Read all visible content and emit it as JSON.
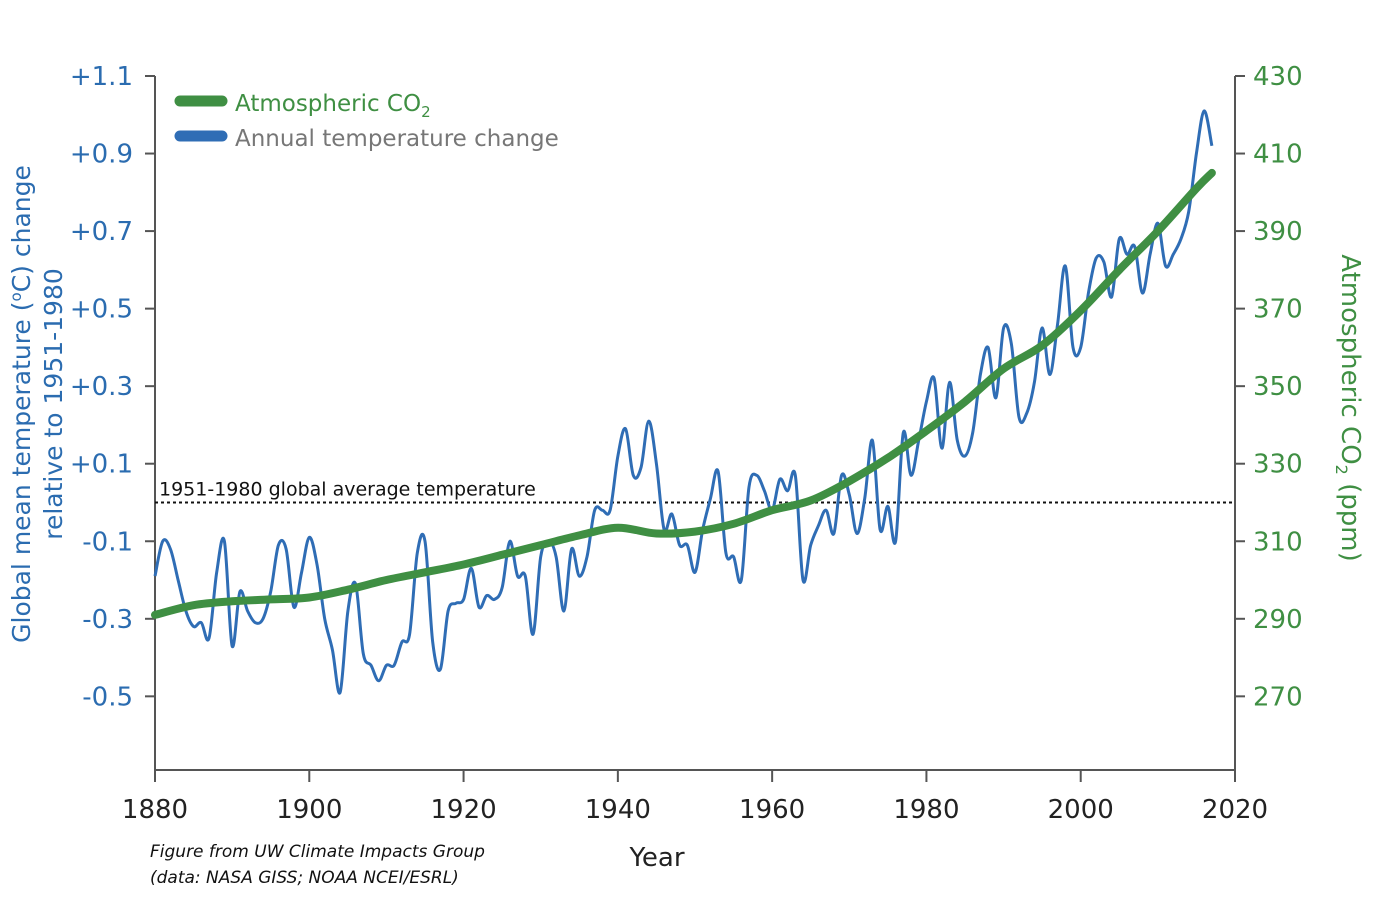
{
  "chart_data": {
    "type": "line",
    "title": "",
    "xlabel": "Year",
    "ylabel_left": {
      "main": "Global  mean temperature (",
      "sup": "o",
      "rest": "C) change",
      "line2": "relative to 1951-1980"
    },
    "ylabel_right": {
      "main": "Atmospheric CO",
      "sub": "2",
      "rest": " (ppm)"
    },
    "xlim": [
      1880,
      2020
    ],
    "ylim_left": [
      -0.69,
      1.1
    ],
    "ylim_right": [
      251,
      430
    ],
    "x_ticks": [
      "1880",
      "1900",
      "1920",
      "1940",
      "1960",
      "1980",
      "2000",
      "2020"
    ],
    "x_tick_values": [
      1880,
      1900,
      1920,
      1940,
      1960,
      1980,
      2000,
      2020
    ],
    "y_left_ticks": [
      "+1.1",
      "+0.9",
      "+0.7",
      "+0.5",
      "+0.3",
      "+0.1",
      "-0.1",
      "-0.3",
      "-0.5"
    ],
    "y_left_tick_values": [
      1.1,
      0.9,
      0.7,
      0.5,
      0.3,
      0.1,
      -0.1,
      -0.3,
      -0.5
    ],
    "y_right_ticks": [
      "430",
      "410",
      "390",
      "370",
      "350",
      "330",
      "310",
      "290",
      "270"
    ],
    "y_right_tick_values": [
      430,
      410,
      390,
      370,
      350,
      330,
      310,
      290,
      270
    ],
    "legend": {
      "position": "top-left",
      "co2": {
        "main": "Atmospheric CO",
        "sub": "2"
      },
      "temp": "Annual temperature change"
    },
    "reference_line": {
      "value": 0.0,
      "label": "1951-1980 global average temperature"
    },
    "colors": {
      "temperature": "#2f6db5",
      "co2": "#3f8f43",
      "axis": "#555555"
    },
    "series": [
      {
        "key": "temperature",
        "axis": "left",
        "x": [
          1880,
          1881,
          1882,
          1883,
          1884,
          1885,
          1886,
          1887,
          1888,
          1889,
          1890,
          1891,
          1892,
          1893,
          1894,
          1895,
          1896,
          1897,
          1898,
          1899,
          1900,
          1901,
          1902,
          1903,
          1904,
          1905,
          1906,
          1907,
          1908,
          1909,
          1910,
          1911,
          1912,
          1913,
          1914,
          1915,
          1916,
          1917,
          1918,
          1919,
          1920,
          1921,
          1922,
          1923,
          1924,
          1925,
          1926,
          1927,
          1928,
          1929,
          1930,
          1931,
          1932,
          1933,
          1934,
          1935,
          1936,
          1937,
          1938,
          1939,
          1940,
          1941,
          1942,
          1943,
          1944,
          1945,
          1946,
          1947,
          1948,
          1949,
          1950,
          1951,
          1952,
          1953,
          1954,
          1955,
          1956,
          1957,
          1958,
          1959,
          1960,
          1961,
          1962,
          1963,
          1964,
          1965,
          1966,
          1967,
          1968,
          1969,
          1970,
          1971,
          1972,
          1973,
          1974,
          1975,
          1976,
          1977,
          1978,
          1979,
          1980,
          1981,
          1982,
          1983,
          1984,
          1985,
          1986,
          1987,
          1988,
          1989,
          1990,
          1991,
          1992,
          1993,
          1994,
          1995,
          1996,
          1997,
          1998,
          1999,
          2000,
          2001,
          2002,
          2003,
          2004,
          2005,
          2006,
          2007,
          2008,
          2009,
          2010,
          2011,
          2012,
          2013,
          2014,
          2015,
          2016,
          2017
        ],
        "values": [
          -0.19,
          -0.1,
          -0.12,
          -0.2,
          -0.28,
          -0.32,
          -0.31,
          -0.35,
          -0.18,
          -0.1,
          -0.37,
          -0.23,
          -0.28,
          -0.31,
          -0.3,
          -0.23,
          -0.11,
          -0.12,
          -0.27,
          -0.18,
          -0.09,
          -0.16,
          -0.3,
          -0.38,
          -0.49,
          -0.28,
          -0.21,
          -0.39,
          -0.42,
          -0.46,
          -0.42,
          -0.42,
          -0.36,
          -0.34,
          -0.13,
          -0.1,
          -0.36,
          -0.43,
          -0.28,
          -0.26,
          -0.25,
          -0.17,
          -0.27,
          -0.24,
          -0.25,
          -0.22,
          -0.1,
          -0.19,
          -0.19,
          -0.34,
          -0.14,
          -0.1,
          -0.14,
          -0.28,
          -0.12,
          -0.19,
          -0.14,
          -0.02,
          -0.02,
          -0.02,
          0.12,
          0.19,
          0.07,
          0.09,
          0.21,
          0.1,
          -0.07,
          -0.03,
          -0.11,
          -0.11,
          -0.18,
          -0.07,
          0.01,
          0.08,
          -0.13,
          -0.14,
          -0.2,
          0.04,
          0.07,
          0.03,
          -0.02,
          0.06,
          0.03,
          0.07,
          -0.2,
          -0.11,
          -0.06,
          -0.02,
          -0.08,
          0.07,
          0.02,
          -0.08,
          0.01,
          0.16,
          -0.07,
          -0.01,
          -0.1,
          0.18,
          0.07,
          0.16,
          0.26,
          0.32,
          0.14,
          0.31,
          0.16,
          0.12,
          0.18,
          0.33,
          0.4,
          0.27,
          0.45,
          0.41,
          0.22,
          0.23,
          0.31,
          0.45,
          0.33,
          0.46,
          0.61,
          0.4,
          0.4,
          0.54,
          0.63,
          0.62,
          0.53,
          0.68,
          0.64,
          0.66,
          0.54,
          0.64,
          0.72,
          0.61,
          0.64,
          0.68,
          0.75,
          0.9,
          1.01,
          0.92
        ]
      },
      {
        "key": "co2",
        "axis": "right",
        "x": [
          1880,
          1885,
          1890,
          1895,
          1900,
          1905,
          1910,
          1915,
          1920,
          1925,
          1930,
          1935,
          1940,
          1945,
          1950,
          1955,
          1960,
          1965,
          1970,
          1975,
          1980,
          1985,
          1990,
          1995,
          2000,
          2005,
          2010,
          2015,
          2017
        ],
        "values": [
          291.0,
          293.5,
          294.5,
          295.0,
          295.5,
          297.5,
          300.0,
          302.0,
          304.0,
          306.5,
          309.0,
          311.5,
          313.5,
          312.0,
          312.5,
          314.5,
          318.0,
          320.5,
          325.5,
          331.5,
          338.5,
          346.0,
          354.5,
          360.5,
          369.5,
          380.0,
          390.0,
          401.0,
          405.0
        ]
      }
    ],
    "credit": [
      "Figure from UW Climate Impacts Group",
      "(data: NASA GISS; NOAA NCEI/ESRL)"
    ]
  }
}
